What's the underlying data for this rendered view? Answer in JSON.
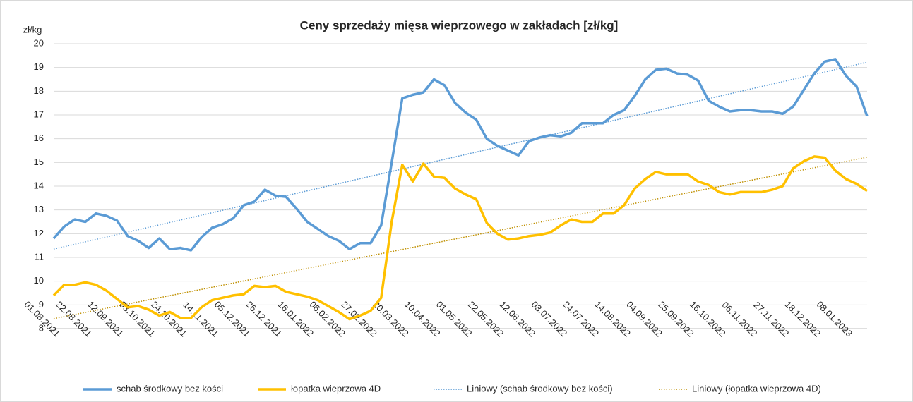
{
  "chart_data": {
    "type": "line",
    "title": "Ceny sprzedaży mięsa wieprzowego w zakładach [zł/kg]",
    "y_label": "zł/kg",
    "categories": [
      "01.08.2021",
      null,
      null,
      "22.08.2021",
      null,
      null,
      "12.09.2021",
      null,
      null,
      "03.10.2021",
      null,
      null,
      "24.10.2021",
      null,
      null,
      "14.11.2021",
      null,
      null,
      "05.12.2021",
      null,
      null,
      "26.12.2021",
      null,
      null,
      "16.01.2022",
      null,
      null,
      "06.02.2022",
      null,
      null,
      "27.02.2022",
      null,
      null,
      "20.03.2022",
      null,
      null,
      "10.04.2022",
      null,
      null,
      "01.05.2022",
      null,
      null,
      "22.05.2022",
      null,
      null,
      "12.06.2022",
      null,
      null,
      "03.07.2022",
      null,
      null,
      "24.07.2022",
      null,
      null,
      "14.08.2022",
      null,
      null,
      "04.09.2022",
      null,
      null,
      "25.09.2022",
      null,
      null,
      "16.10.2022",
      null,
      null,
      "06.11.2022",
      null,
      null,
      "27.11.2022",
      null,
      null,
      "18.12.2022",
      null,
      null,
      "08.01.2023",
      null,
      null
    ],
    "series": [
      {
        "name": "schab środkowy bez kości",
        "color": "#5b9bd5",
        "values": [
          11.8,
          12.3,
          12.6,
          12.5,
          12.85,
          12.75,
          12.55,
          11.9,
          11.7,
          11.4,
          11.8,
          11.35,
          11.4,
          11.3,
          11.85,
          12.25,
          12.4,
          12.65,
          13.2,
          13.35,
          13.85,
          13.6,
          13.55,
          13.05,
          12.5,
          12.2,
          11.9,
          11.7,
          11.35,
          11.6,
          11.6,
          12.35,
          15.0,
          17.7,
          17.85,
          17.95,
          18.5,
          18.25,
          17.5,
          17.1,
          16.8,
          16.0,
          15.7,
          15.5,
          15.3,
          15.9,
          16.05,
          16.15,
          16.1,
          16.25,
          16.65,
          16.65,
          16.65,
          17.0,
          17.2,
          17.8,
          18.5,
          18.9,
          18.95,
          18.75,
          18.7,
          18.45,
          17.6,
          17.35,
          17.15,
          17.2,
          17.2,
          17.15,
          17.15,
          17.05,
          17.35,
          18.05,
          18.75,
          19.25,
          19.35,
          18.65,
          18.2,
          16.95
        ]
      },
      {
        "name": "łopatka wieprzowa 4D",
        "color": "#ffc000",
        "values": [
          9.4,
          9.85,
          9.85,
          9.95,
          9.85,
          9.6,
          9.25,
          8.9,
          8.95,
          8.8,
          8.55,
          8.7,
          8.45,
          8.45,
          8.9,
          9.2,
          9.3,
          9.4,
          9.45,
          9.8,
          9.75,
          9.8,
          9.55,
          9.45,
          9.35,
          9.2,
          8.95,
          8.7,
          8.4,
          8.55,
          8.75,
          9.3,
          12.5,
          14.9,
          14.2,
          14.95,
          14.4,
          14.35,
          13.9,
          13.65,
          13.45,
          12.45,
          12.0,
          11.75,
          11.8,
          11.9,
          11.95,
          12.05,
          12.35,
          12.6,
          12.5,
          12.5,
          12.85,
          12.85,
          13.2,
          13.9,
          14.3,
          14.6,
          14.5,
          14.5,
          14.5,
          14.2,
          14.05,
          13.75,
          13.65,
          13.75,
          13.75,
          13.75,
          13.85,
          14.0,
          14.75,
          15.05,
          15.25,
          15.2,
          14.65,
          14.3,
          14.1,
          13.8
        ]
      }
    ],
    "trendlines": [
      {
        "name": "Liniowy (schab środkowy bez kości)",
        "color": "#5b9bd5",
        "start": 11.35,
        "end": 19.22
      },
      {
        "name": "Liniowy (łopatka wieprzowa 4D)",
        "color": "#bf9000",
        "start": 8.42,
        "end": 15.22
      }
    ],
    "ylim": [
      8,
      20
    ],
    "yticks": [
      8,
      9,
      10,
      11,
      12,
      13,
      14,
      15,
      16,
      17,
      18,
      19,
      20
    ],
    "grid": true
  }
}
